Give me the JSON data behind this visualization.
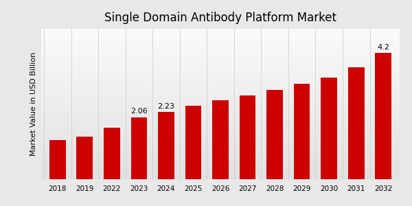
{
  "title": "Single Domain Antibody Platform Market",
  "ylabel": "Market Value in USD Billion",
  "years": [
    "2018",
    "2019",
    "2022",
    "2023",
    "2024",
    "2025",
    "2026",
    "2027",
    "2028",
    "2029",
    "2030",
    "2031",
    "2032"
  ],
  "values": [
    1.3,
    1.42,
    1.72,
    2.06,
    2.23,
    2.45,
    2.62,
    2.78,
    2.97,
    3.18,
    3.38,
    3.72,
    4.2
  ],
  "bar_color": "#CC0000",
  "labeled_indices": [
    3,
    4,
    12
  ],
  "labels": [
    "2.06",
    "2.23",
    "4.2"
  ],
  "bg_outer": "#d0d0d0",
  "bg_inner": "#f8f8f8",
  "bottom_bar_color": "#CC0000",
  "bottom_bar_height": 0.045,
  "title_fontsize": 12,
  "ylabel_fontsize": 8,
  "tick_fontsize": 7.5,
  "label_fontsize": 8,
  "ylim": [
    0,
    5.0
  ],
  "bar_width": 0.6,
  "gridline_color": "#cccccc",
  "gridline_alpha": 0.8
}
